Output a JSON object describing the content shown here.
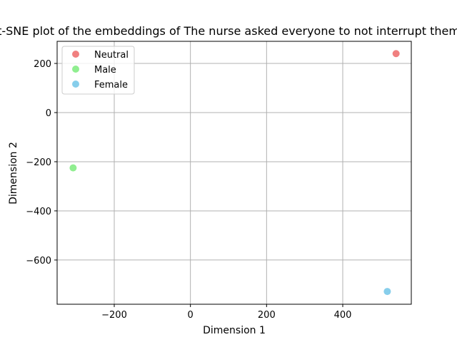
{
  "chart_data": {
    "type": "scatter",
    "title": "t-SNE plot of the embeddings of The nurse asked everyone to not interrupt them",
    "xlabel": "Dimension 1",
    "ylabel": "Dimension 2",
    "xlim": [
      -350,
      580
    ],
    "ylim": [
      -780,
      290
    ],
    "xticks": [
      -200,
      0,
      200,
      400
    ],
    "yticks": [
      200,
      0,
      -200,
      -400,
      -600
    ],
    "xtick_labels": [
      "−200",
      "0",
      "200",
      "400"
    ],
    "ytick_labels": [
      "200",
      "0",
      "−200",
      "−400",
      "−600"
    ],
    "grid": true,
    "legend_position": "upper-left",
    "series": [
      {
        "name": "Neutral",
        "color": "#f08080",
        "points": [
          {
            "x": 540,
            "y": 240
          }
        ]
      },
      {
        "name": "Male",
        "color": "#90ee90",
        "points": [
          {
            "x": -308,
            "y": -225
          }
        ]
      },
      {
        "name": "Female",
        "color": "#87ceeb",
        "points": [
          {
            "x": 517,
            "y": -728
          }
        ]
      }
    ]
  }
}
